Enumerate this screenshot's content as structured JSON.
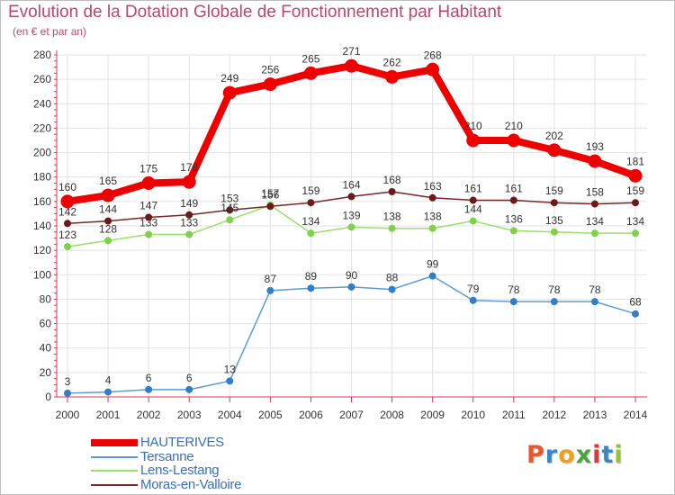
{
  "header": {
    "title": "Evolution de la Dotation Globale de Fonctionnement par Habitant",
    "subtitle": "(en € et par an)"
  },
  "brand": {
    "letters": [
      "P",
      "r",
      "o",
      "x",
      "i",
      "t",
      "i"
    ],
    "colors": [
      "#e8572a",
      "#3a86c8",
      "#f0a020",
      "#49a63c",
      "#d83a3a",
      "#3a86c8",
      "#9bc13a"
    ]
  },
  "colors": {
    "axis": "#e0315a",
    "grid": "#e2e2e2",
    "tick_label": "#333333",
    "data_label": "#333333"
  },
  "chart_data": {
    "type": "line",
    "title": "Evolution de la Dotation Globale de Fonctionnement par Habitant",
    "subtitle": "(en € et par an)",
    "xlabel": "",
    "ylabel": "",
    "x": [
      "2000",
      "2001",
      "2002",
      "2003",
      "2004",
      "2005",
      "2006",
      "2007",
      "2008",
      "2009",
      "2010",
      "2011",
      "2012",
      "2013",
      "2014"
    ],
    "ylim": [
      0,
      280
    ],
    "yticks": [
      0,
      20,
      40,
      60,
      80,
      100,
      120,
      140,
      160,
      180,
      200,
      220,
      240,
      260,
      280
    ],
    "grid": true,
    "legend_position": "bottom-left",
    "series": [
      {
        "name": "HAUTERIVES",
        "color": "#ee0000",
        "marker_color": "#ee0000",
        "labels_above": true,
        "values": [
          160,
          165,
          175,
          176,
          249,
          256,
          265,
          271,
          262,
          268,
          210,
          210,
          202,
          193,
          181
        ]
      },
      {
        "name": "Tersanne",
        "color": "#5b9bd5",
        "marker_color": "#2f7fc8",
        "labels_above": true,
        "values": [
          3,
          4,
          6,
          6,
          13,
          87,
          89,
          90,
          88,
          99,
          79,
          78,
          78,
          78,
          68
        ]
      },
      {
        "name": "Lens-Lestang",
        "color": "#99e066",
        "marker_color": "#7fd14a",
        "labels_above": true,
        "values": [
          123,
          128,
          133,
          133,
          145,
          157,
          134,
          139,
          138,
          138,
          144,
          136,
          135,
          134,
          134
        ]
      },
      {
        "name": "Moras-en-Valloire",
        "color": "#7a2525",
        "marker_color": "#6b1a1a",
        "labels_above": true,
        "values": [
          142,
          144,
          147,
          149,
          153,
          156,
          159,
          164,
          168,
          163,
          161,
          161,
          159,
          158,
          159
        ]
      }
    ]
  }
}
